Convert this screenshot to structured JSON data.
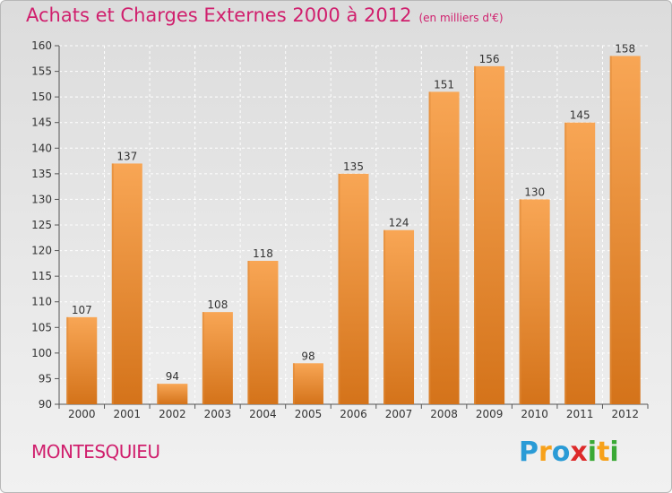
{
  "header": {
    "title": "Achats et Charges Externes 2000 à 2012",
    "unit": "(en milliers d'€)"
  },
  "footer": {
    "place": "MONTESQUIEU",
    "logo_letters": [
      "P",
      "r",
      "o",
      "x",
      "i",
      "t",
      "i"
    ],
    "logo_colors": [
      "#2a9bd6",
      "#f7a11a",
      "#2a9bd6",
      "#dd2a2a",
      "#3aa935",
      "#f7a11a",
      "#3aa935"
    ]
  },
  "colors": {
    "title": "#d01f6d",
    "bar_light": "#f8a655",
    "bar_dark": "#d4731a"
  },
  "chart_data": {
    "type": "bar",
    "categories": [
      "2000",
      "2001",
      "2002",
      "2003",
      "2004",
      "2005",
      "2006",
      "2007",
      "2008",
      "2009",
      "2010",
      "2011",
      "2012"
    ],
    "values": [
      107,
      137,
      94,
      108,
      118,
      98,
      135,
      124,
      151,
      156,
      130,
      145,
      158
    ],
    "ylim": [
      90,
      160
    ],
    "yticks": [
      90,
      95,
      100,
      105,
      110,
      115,
      120,
      125,
      130,
      135,
      140,
      145,
      150,
      155,
      160
    ],
    "grid": true,
    "data_labels": true
  }
}
